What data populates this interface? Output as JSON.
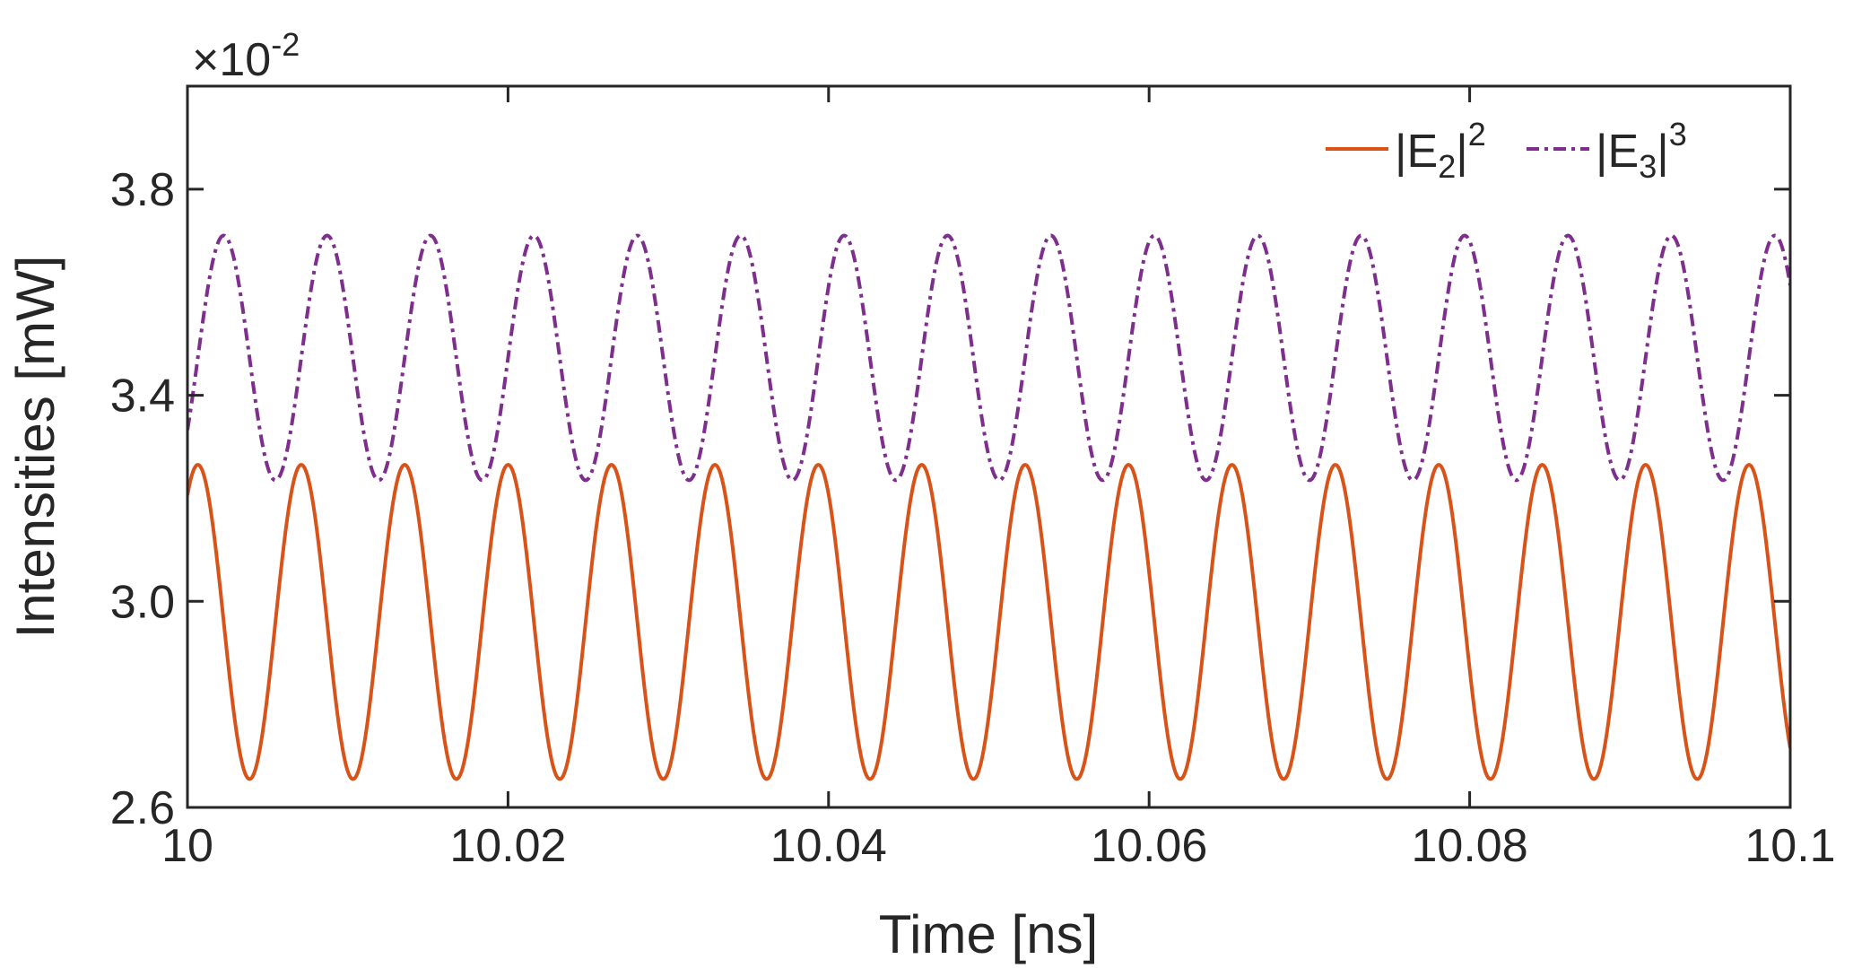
{
  "chart_data": {
    "type": "line",
    "title": "",
    "xlabel": "Time [ns]",
    "ylabel": "Intensities [mW]",
    "y_exponent_label": {
      "times": "×",
      "base": "10",
      "exponent": "-2"
    },
    "xlim": [
      10,
      10.1
    ],
    "ylim": [
      2.6,
      4.0
    ],
    "x_ticks": [
      10,
      10.02,
      10.04,
      10.06,
      10.08,
      10.1
    ],
    "x_tick_labels": [
      "10",
      "10.02",
      "10.04",
      "10.06",
      "10.08",
      "10.1"
    ],
    "y_ticks": [
      2.6,
      3.0,
      3.4,
      3.8
    ],
    "y_tick_labels": [
      "2.6",
      "3.0",
      "3.4",
      "3.8"
    ],
    "legend_position": "top-right",
    "series": [
      {
        "name": "|E2|^2",
        "label_main": "|E",
        "label_sub": "2",
        "label_close": "|",
        "label_sup": "2",
        "color": "#D95319",
        "style": "solid",
        "function": "sinusoid",
        "min": 2.655,
        "max": 3.265,
        "period_ns": 0.006452,
        "first_max_at_ns": 10.00065
      },
      {
        "name": "|E3|^3",
        "label_main": "|E",
        "label_sub": "3",
        "label_close": "|",
        "label_sup": "3",
        "color": "#7E2F8E",
        "style": "dashdot",
        "function": "sinusoid",
        "min": 3.235,
        "max": 3.71,
        "period_ns": 0.006452,
        "first_max_at_ns": 10.00226
      }
    ]
  }
}
